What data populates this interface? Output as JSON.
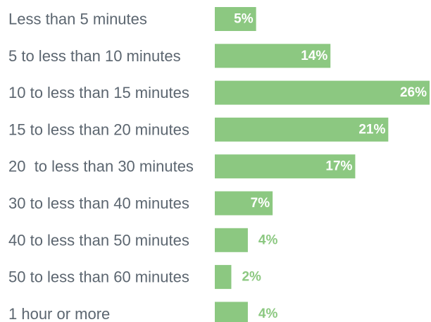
{
  "colors": {
    "bar": "#8cc881",
    "category_text": "#5c6670",
    "label_inside": "#ffffff",
    "label_outside": "#8cc881"
  },
  "chart_data": {
    "type": "bar",
    "orientation": "horizontal",
    "title": "",
    "xlabel": "",
    "ylabel": "",
    "grid": false,
    "value_unit": "%",
    "xlim": [
      0,
      26
    ],
    "categories": [
      "Less than 5 minutes",
      "5 to less than 10 minutes",
      "10 to less than 15 minutes",
      "15 to less than 20 minutes",
      "20  to less than 30 minutes",
      "30 to less than 40 minutes",
      "40 to less than 50 minutes",
      "50 to less than 60 minutes",
      "1 hour or more"
    ],
    "values": [
      5,
      14,
      26,
      21,
      17,
      7,
      4,
      2,
      4
    ],
    "data_labels": [
      "5%",
      "14%",
      "26%",
      "21%",
      "17%",
      "7%",
      "4%",
      "2%",
      "4%"
    ]
  }
}
